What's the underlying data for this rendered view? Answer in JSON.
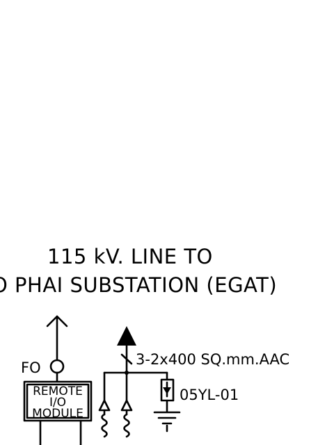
{
  "title": {
    "line1": "115 kV. LINE TO",
    "line2": "O PHAI SUBSTATION (EGAT)"
  },
  "labels": {
    "fo": "FO",
    "remote_io_line1": "REMOTE",
    "remote_io_line2": "I/O",
    "remote_io_line3": "MODULE",
    "conductor": "3-2x400 SQ.mm.AAC",
    "arrester_tag": "05YL-01"
  },
  "colors": {
    "ink": "#000000",
    "background": "#ffffff"
  }
}
